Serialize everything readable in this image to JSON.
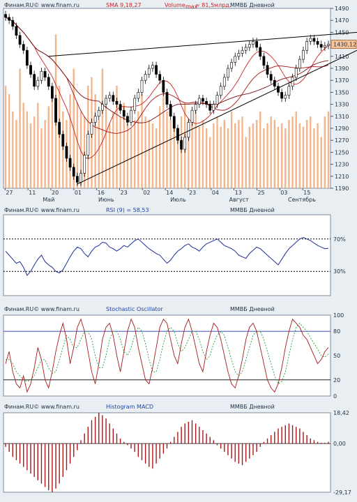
{
  "chart_data": [
    {
      "type": "line",
      "panel": "price",
      "watermark": "Финам.RU© www.finam.ru",
      "indicator_label": "SMA 9,18,27",
      "volume_label": "Volume",
      "volume_sub": "max",
      "volume_value": "= 81,5млрд.",
      "instrument": "ММВБ Дневной",
      "last_price_label": "1430,12",
      "last_price": 1430.12,
      "ylim": [
        1190,
        1490
      ],
      "yticks": [
        1490,
        1470,
        1450,
        1430,
        1410,
        1390,
        1370,
        1350,
        1330,
        1310,
        1290,
        1270,
        1250,
        1230,
        1210,
        1190
      ],
      "x_day_labels": [
        "27",
        "11",
        "20",
        "01",
        "16",
        "23",
        "02",
        "14",
        "23",
        "04",
        "13",
        "25",
        "03",
        "15"
      ],
      "month_labels": [
        "Май",
        "Июнь",
        "Июль",
        "Август",
        "Сентябрь"
      ],
      "close_series": [
        1475,
        1470,
        1460,
        1445,
        1430,
        1420,
        1395,
        1380,
        1360,
        1370,
        1385,
        1375,
        1360,
        1340,
        1300,
        1280,
        1260,
        1240,
        1225,
        1210,
        1200,
        1215,
        1245,
        1280,
        1300,
        1310,
        1320,
        1330,
        1340,
        1345,
        1335,
        1330,
        1320,
        1310,
        1300,
        1320,
        1340,
        1350,
        1370,
        1380,
        1390,
        1395,
        1380,
        1370,
        1350,
        1330,
        1310,
        1290,
        1270,
        1255,
        1275,
        1300,
        1320,
        1330,
        1340,
        1335,
        1330,
        1320,
        1330,
        1345,
        1360,
        1375,
        1390,
        1400,
        1410,
        1415,
        1420,
        1425,
        1430,
        1435,
        1425,
        1410,
        1395,
        1380,
        1370,
        1360,
        1350,
        1340,
        1345,
        1360,
        1375,
        1390,
        1405,
        1420,
        1435,
        1440,
        1435,
        1430,
        1425,
        1428,
        1430.12
      ],
      "volume_series": [
        60,
        55,
        45,
        40,
        70,
        50,
        45,
        38,
        42,
        50,
        35,
        40,
        48,
        55,
        90,
        60,
        45,
        40,
        55,
        70,
        50,
        45,
        42,
        60,
        65,
        55,
        40,
        70,
        48,
        38,
        45,
        60,
        42,
        50,
        38,
        35,
        40,
        45,
        55,
        42,
        40,
        38,
        35,
        48,
        60,
        45,
        40,
        36,
        30,
        42,
        50,
        40,
        38,
        45,
        36,
        40,
        35,
        30,
        38,
        42,
        36,
        40,
        35,
        45,
        38,
        40,
        42,
        30,
        36,
        38,
        40,
        45,
        35,
        38,
        42,
        40,
        36,
        38,
        35,
        40,
        42,
        45,
        38,
        36,
        40,
        42,
        35,
        38,
        30,
        42,
        45
      ],
      "trendlines": [
        {
          "x1": 1217,
          "y1": 1410,
          "x2": 1440,
          "y2": 1435
        },
        {
          "x1": 1210,
          "y1": 1195,
          "x2": 1440,
          "y2": 1405
        }
      ]
    },
    {
      "type": "line",
      "panel": "rsi",
      "watermark": "Финам.RU© www.finam.ru",
      "title": "RSI (9) = 58,53",
      "instrument": "ММВБ Дневной",
      "levels": [
        70,
        30
      ],
      "level_labels": [
        "70%",
        "30%"
      ],
      "ylim": [
        0,
        100
      ],
      "values": [
        55,
        50,
        45,
        40,
        42,
        35,
        25,
        30,
        38,
        45,
        50,
        42,
        38,
        35,
        30,
        28,
        32,
        40,
        48,
        55,
        60,
        58,
        52,
        48,
        55,
        60,
        62,
        66,
        65,
        60,
        58,
        55,
        58,
        62,
        60,
        64,
        68,
        70,
        66,
        62,
        58,
        55,
        52,
        50,
        45,
        40,
        44,
        50,
        55,
        58,
        62,
        64,
        60,
        58,
        55,
        60,
        64,
        66,
        68,
        70,
        66,
        62,
        60,
        58,
        55,
        50,
        48,
        46,
        52,
        56,
        60,
        58,
        54,
        50,
        46,
        42,
        38,
        45,
        52,
        58,
        62,
        66,
        70,
        72,
        70,
        68,
        65,
        62,
        60,
        58,
        58.53
      ]
    },
    {
      "type": "line",
      "panel": "stochastic",
      "watermark": "Финам.RU© www.finam.ru",
      "title": "Stochastic Oscillator",
      "instrument": "ММВБ Дневной",
      "yticks": [
        100,
        80,
        50,
        20,
        0
      ],
      "levels": [
        80,
        20
      ],
      "ylim": [
        0,
        100
      ],
      "k_values": [
        40,
        55,
        30,
        15,
        10,
        25,
        5,
        15,
        35,
        60,
        45,
        20,
        10,
        30,
        55,
        75,
        90,
        70,
        40,
        60,
        85,
        95,
        80,
        55,
        30,
        15,
        40,
        70,
        85,
        90,
        75,
        50,
        30,
        55,
        80,
        95,
        85,
        60,
        40,
        20,
        15,
        35,
        60,
        85,
        95,
        90,
        70,
        50,
        40,
        65,
        85,
        95,
        80,
        60,
        40,
        30,
        55,
        75,
        90,
        85,
        70,
        50,
        30,
        15,
        10,
        25,
        45,
        70,
        85,
        90,
        80,
        60,
        40,
        20,
        10,
        5,
        15,
        35,
        60,
        80,
        95,
        90,
        85,
        75,
        70,
        60,
        50,
        40,
        45,
        55,
        60
      ],
      "d_values": [
        45,
        45,
        40,
        30,
        25,
        20,
        18,
        20,
        25,
        35,
        45,
        45,
        35,
        28,
        30,
        45,
        60,
        75,
        70,
        60,
        60,
        70,
        80,
        80,
        70,
        50,
        35,
        35,
        50,
        70,
        80,
        80,
        70,
        55,
        50,
        60,
        75,
        85,
        80,
        65,
        45,
        30,
        30,
        45,
        65,
        80,
        85,
        80,
        65,
        55,
        60,
        70,
        80,
        80,
        70,
        55,
        45,
        50,
        65,
        75,
        80,
        75,
        60,
        45,
        30,
        25,
        30,
        45,
        60,
        75,
        80,
        80,
        70,
        55,
        40,
        25,
        15,
        18,
        30,
        50,
        70,
        85,
        90,
        85,
        80,
        72,
        65,
        58,
        50,
        48,
        52
      ]
    },
    {
      "type": "bar",
      "panel": "macd",
      "watermark": "Финам.RU© www.finam.ru",
      "title": "Histogram MACD",
      "instrument": "ММВБ Дневной",
      "yticks": [
        18.42,
        0.0,
        -29.17
      ],
      "ytick_labels": [
        "18,42",
        "0,00",
        "-29,17"
      ],
      "ylim": [
        -29.17,
        18.42
      ],
      "values": [
        -2,
        -5,
        -8,
        -10,
        -12,
        -14,
        -16,
        -18,
        -20,
        -22,
        -24,
        -26,
        -28,
        -29.17,
        -27,
        -24,
        -20,
        -16,
        -12,
        -8,
        -4,
        2,
        6,
        10,
        14,
        16,
        18.42,
        17,
        15,
        12,
        9,
        6,
        3,
        1,
        -1,
        -3,
        -5,
        -8,
        -10,
        -12,
        -14,
        -15,
        -12,
        -9,
        -6,
        -3,
        1,
        4,
        7,
        10,
        12,
        13,
        14,
        12,
        10,
        8,
        6,
        4,
        2,
        -1,
        -3,
        -5,
        -7,
        -9,
        -11,
        -12,
        -13,
        -11,
        -9,
        -7,
        -5,
        -2,
        1,
        3,
        5,
        7,
        9,
        10,
        11,
        12,
        11,
        10,
        9,
        7,
        5,
        3,
        2,
        1,
        0.5,
        0.5,
        1
      ]
    }
  ]
}
